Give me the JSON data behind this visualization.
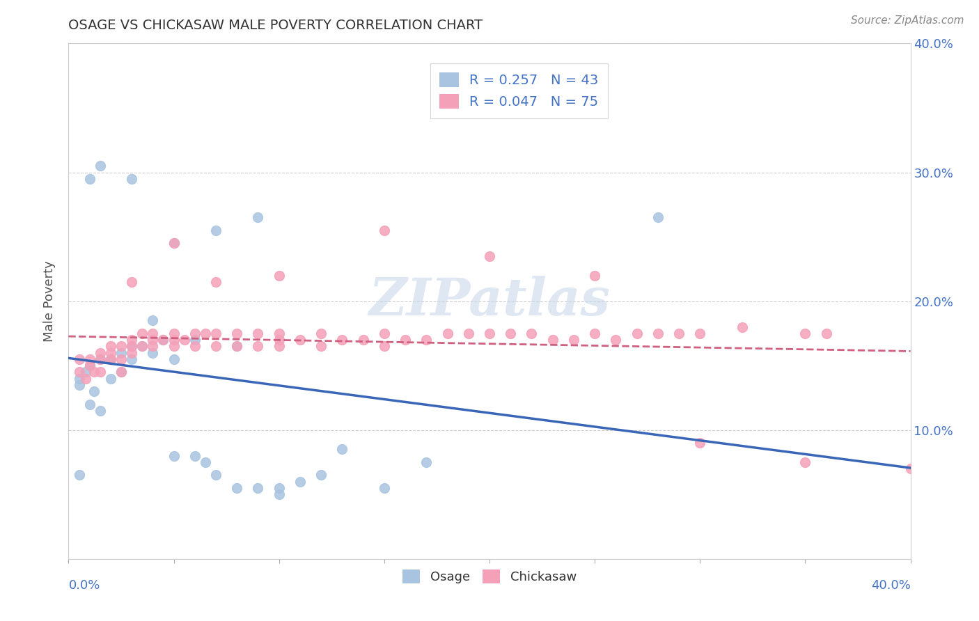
{
  "title": "OSAGE VS CHICKASAW MALE POVERTY CORRELATION CHART",
  "source": "Source: ZipAtlas.com",
  "ylabel": "Male Poverty",
  "xmin": 0.0,
  "xmax": 0.4,
  "ymin": 0.0,
  "ymax": 0.4,
  "osage_R": 0.257,
  "osage_N": 43,
  "chickasaw_R": 0.047,
  "chickasaw_N": 75,
  "osage_color": "#a8c4e0",
  "chickasaw_color": "#f4a0b8",
  "osage_line_color": "#3a66b8",
  "chickasaw_line_color": "#d06080",
  "background_color": "#ffffff",
  "watermark": "ZIPatlas",
  "osage_x": [
    0.005,
    0.005,
    0.008,
    0.01,
    0.01,
    0.012,
    0.015,
    0.015,
    0.02,
    0.02,
    0.025,
    0.025,
    0.03,
    0.03,
    0.035,
    0.04,
    0.045,
    0.05,
    0.05,
    0.06,
    0.065,
    0.07,
    0.08,
    0.09,
    0.1,
    0.1,
    0.11,
    0.12,
    0.13,
    0.15,
    0.17,
    0.09,
    0.04,
    0.06,
    0.08,
    0.07,
    0.05,
    0.03,
    0.02,
    0.015,
    0.01,
    0.28,
    0.005
  ],
  "osage_y": [
    0.14,
    0.135,
    0.145,
    0.15,
    0.12,
    0.13,
    0.155,
    0.115,
    0.155,
    0.14,
    0.16,
    0.145,
    0.165,
    0.155,
    0.165,
    0.185,
    0.17,
    0.155,
    0.08,
    0.08,
    0.075,
    0.065,
    0.055,
    0.055,
    0.05,
    0.055,
    0.06,
    0.065,
    0.085,
    0.055,
    0.075,
    0.265,
    0.16,
    0.17,
    0.165,
    0.255,
    0.245,
    0.295,
    0.155,
    0.305,
    0.295,
    0.265,
    0.065
  ],
  "chickasaw_x": [
    0.005,
    0.005,
    0.008,
    0.01,
    0.01,
    0.012,
    0.015,
    0.015,
    0.015,
    0.02,
    0.02,
    0.02,
    0.025,
    0.025,
    0.025,
    0.03,
    0.03,
    0.03,
    0.035,
    0.035,
    0.04,
    0.04,
    0.04,
    0.045,
    0.05,
    0.05,
    0.05,
    0.055,
    0.06,
    0.06,
    0.065,
    0.07,
    0.07,
    0.08,
    0.08,
    0.09,
    0.09,
    0.1,
    0.1,
    0.1,
    0.11,
    0.12,
    0.12,
    0.13,
    0.14,
    0.15,
    0.15,
    0.16,
    0.17,
    0.18,
    0.19,
    0.2,
    0.21,
    0.22,
    0.23,
    0.24,
    0.25,
    0.26,
    0.27,
    0.28,
    0.29,
    0.3,
    0.32,
    0.35,
    0.36,
    0.05,
    0.1,
    0.15,
    0.2,
    0.25,
    0.3,
    0.35,
    0.4,
    0.03,
    0.07
  ],
  "chickasaw_y": [
    0.145,
    0.155,
    0.14,
    0.15,
    0.155,
    0.145,
    0.16,
    0.155,
    0.145,
    0.165,
    0.16,
    0.155,
    0.165,
    0.155,
    0.145,
    0.17,
    0.165,
    0.16,
    0.175,
    0.165,
    0.175,
    0.17,
    0.165,
    0.17,
    0.175,
    0.17,
    0.165,
    0.17,
    0.175,
    0.165,
    0.175,
    0.175,
    0.165,
    0.175,
    0.165,
    0.175,
    0.165,
    0.17,
    0.175,
    0.165,
    0.17,
    0.175,
    0.165,
    0.17,
    0.17,
    0.175,
    0.165,
    0.17,
    0.17,
    0.175,
    0.175,
    0.175,
    0.175,
    0.175,
    0.17,
    0.17,
    0.175,
    0.17,
    0.175,
    0.175,
    0.175,
    0.175,
    0.18,
    0.175,
    0.175,
    0.245,
    0.22,
    0.255,
    0.235,
    0.22,
    0.09,
    0.075,
    0.07,
    0.215,
    0.215
  ]
}
